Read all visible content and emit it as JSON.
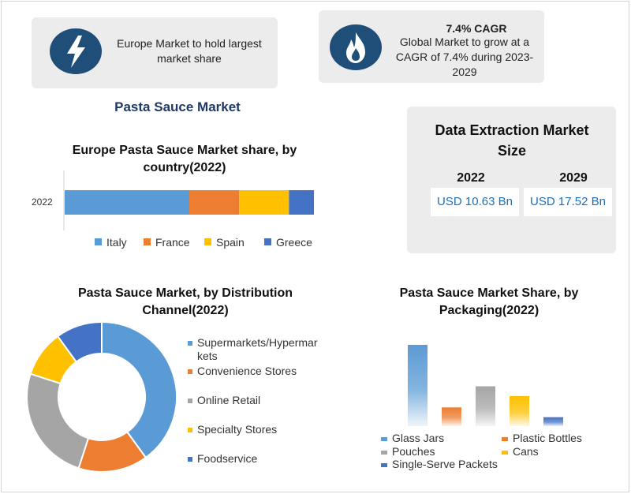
{
  "callouts": {
    "europe": {
      "icon": "lightning-bolt-icon",
      "text": "Europe Market to hold largest market share"
    },
    "cagr": {
      "icon": "flame-icon",
      "heading": "7.4% CAGR",
      "text": "Global Market to grow at a CAGR of 7.4% during 2023-2029"
    }
  },
  "main_title": "Pasta Sauce Market",
  "extraction": {
    "title": "Data Extraction Market Size",
    "years": [
      "2022",
      "2029"
    ],
    "values": [
      "USD 10.63 Bn",
      "USD 17.52 Bn"
    ]
  },
  "colors": {
    "blue": "#5b9bd5",
    "orange": "#ed7d31",
    "gray": "#a5a5a5",
    "yellow": "#ffc000",
    "darkblue": "#4472c4",
    "icon_bg": "#1f4e79"
  },
  "chart_data": [
    {
      "type": "bar",
      "orientation": "horizontal",
      "stacked": true,
      "title": "Europe Pasta Sauce Market share, by country(2022)",
      "categories": [
        "2022"
      ],
      "series": [
        {
          "name": "Italy",
          "values": [
            50
          ],
          "color": "#5b9bd5"
        },
        {
          "name": "France",
          "values": [
            20
          ],
          "color": "#ed7d31"
        },
        {
          "name": "Spain",
          "values": [
            20
          ],
          "color": "#ffc000"
        },
        {
          "name": "Greece",
          "values": [
            10
          ],
          "color": "#4472c4"
        }
      ],
      "legend_position": "bottom"
    },
    {
      "type": "pie",
      "donut": true,
      "title": "Pasta Sauce Market, by Distribution Channel(2022)",
      "labels": [
        "Supermarkets/Hypermarkets",
        "Convenience Stores",
        "Online Retail",
        "Specialty Stores",
        "Foodservice"
      ],
      "legend_labels": [
        "Supermarkets/Hypermar",
        "kets",
        "Convenience Stores",
        "Online Retail",
        "Specialty Stores",
        "Foodservice"
      ],
      "values": [
        40,
        15,
        25,
        10,
        10
      ],
      "colors": [
        "#5b9bd5",
        "#ed7d31",
        "#a5a5a5",
        "#ffc000",
        "#4472c4"
      ],
      "legend_position": "right"
    },
    {
      "type": "bar",
      "title": "Pasta Sauce Market Share, by Packaging(2022)",
      "categories": [
        "Glass Jars",
        "Plastic Bottles",
        "Pouches",
        "Cans",
        "Single-Serve Packets"
      ],
      "values": [
        100,
        23,
        49,
        37,
        11
      ],
      "colors": [
        "#5b9bd5",
        "#ed7d31",
        "#a5a5a5",
        "#ffc000",
        "#4472c4"
      ],
      "legend_position": "bottom"
    }
  ]
}
